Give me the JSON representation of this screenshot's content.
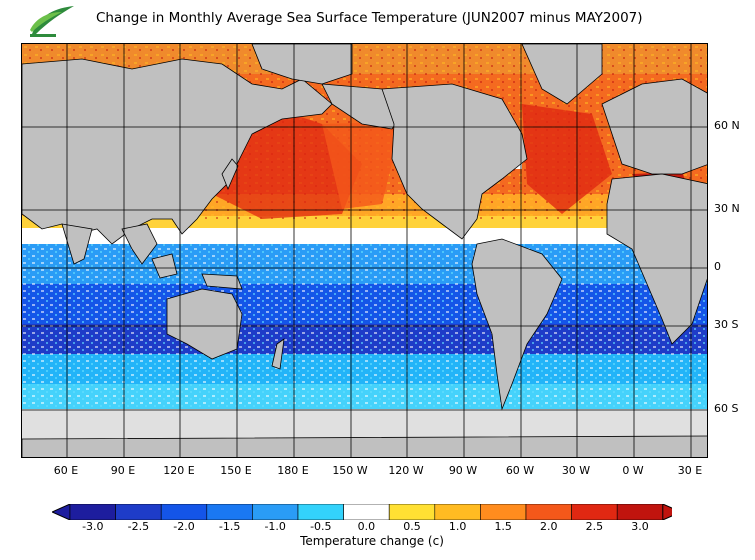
{
  "title": "Change in Monthly Average Sea Surface Temperature (JUN2007 minus MAY2007)",
  "logo_icon": "leaf-logo",
  "longitude_labels": [
    "60 E",
    "90 E",
    "120 E",
    "150 E",
    "180 E",
    "150 W",
    "120 W",
    "90 W",
    "60 W",
    "30 W",
    "0 W",
    "30 E"
  ],
  "latitude_labels": [
    "60 N",
    "30 N",
    "0",
    "30 S",
    "60 S"
  ],
  "colorbar": {
    "title": "Temperature change  (c)",
    "ticks": [
      "-3.0",
      "-2.5",
      "-2.0",
      "-1.5",
      "-1.0",
      "-0.5",
      "0.0",
      "0.5",
      "1.0",
      "1.5",
      "2.0",
      "2.5",
      "3.0"
    ],
    "colors": [
      "#1d1d9e",
      "#1e3cc8",
      "#1455e8",
      "#1a78f2",
      "#2a9cf6",
      "#33d2fb",
      "#ffffff",
      "#ffe033",
      "#ffbb22",
      "#ff8c1e",
      "#f4581a",
      "#e02812",
      "#c0140e"
    ]
  },
  "colors": {
    "land": "#c0c0c0",
    "ice": "#e0e0e0",
    "border": "#000000"
  }
}
